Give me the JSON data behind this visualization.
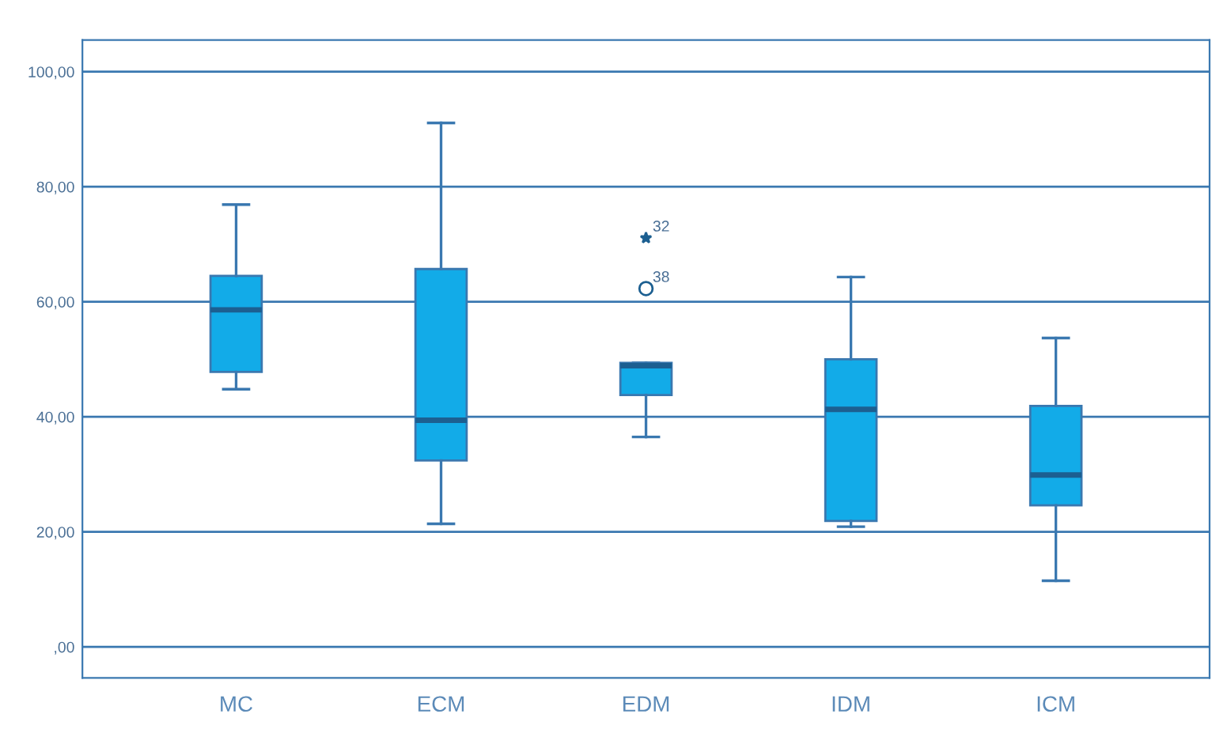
{
  "chart_data": {
    "type": "box",
    "categories": [
      "MC",
      "ECM",
      "EDM",
      "IDM",
      "ICM"
    ],
    "series": [
      {
        "color": "#12abe8",
        "boxes": [
          {
            "low": 44.8,
            "q1": 47.8,
            "median": 58.6,
            "q3": 64.5,
            "high": 76.9
          },
          {
            "low": 21.4,
            "q1": 32.4,
            "median": 39.4,
            "q3": 65.7,
            "high": 91.1
          },
          {
            "low": 36.5,
            "q1": 43.8,
            "median": 48.9,
            "q3": 49.4,
            "high": 49.4,
            "outliers": [
              71.1,
              62.3
            ]
          },
          {
            "low": 20.9,
            "q1": 21.9,
            "median": 41.3,
            "q3": 50.0,
            "high": 64.3
          },
          {
            "low": 11.5,
            "q1": 24.6,
            "median": 29.9,
            "q3": 41.9,
            "high": 53.7
          }
        ]
      }
    ],
    "ylim": [
      -5.4,
      105.5
    ],
    "yticks": [
      {
        "value": 0,
        "label": ",00"
      },
      {
        "value": 20,
        "label": "20,00"
      },
      {
        "value": 40,
        "label": "40,00"
      },
      {
        "value": 60,
        "label": "60,00"
      },
      {
        "value": 80,
        "label": "80,00"
      },
      {
        "value": 100,
        "label": "100,00"
      }
    ],
    "grid": "y",
    "annotations": [
      "32",
      "38"
    ]
  }
}
